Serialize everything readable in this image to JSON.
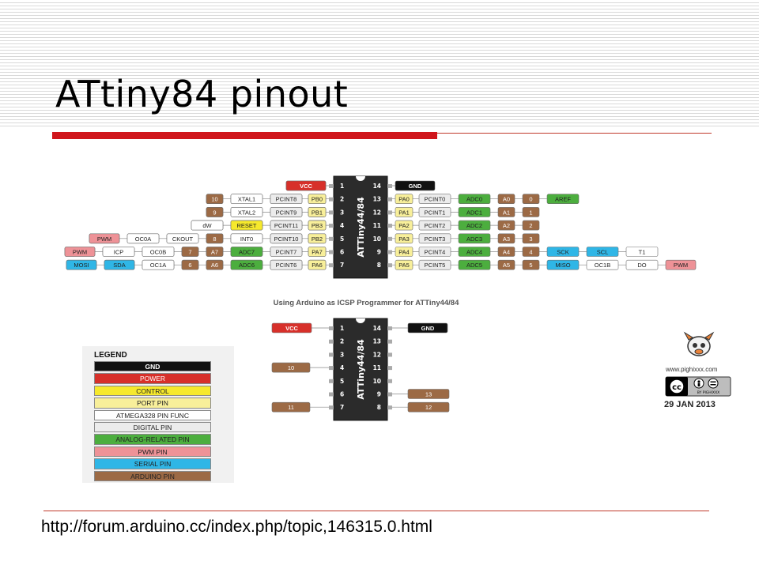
{
  "slide": {
    "title": "ATtiny84 pinout",
    "url": "http://forum.arduino.cc/index.php/topic,146315.0.html"
  },
  "colors": {
    "power": "#d7302a",
    "gnd": "#111111",
    "control": "#f6e92c",
    "port": "#f8ef9a",
    "func": "#ffffff",
    "digital": "#ececec",
    "analog": "#4cae3e",
    "pwm": "#ee9297",
    "serial": "#2fb6e6",
    "arduino": "#9c6a45"
  },
  "chip": {
    "label": "ATTiny44/84",
    "left_pins": [
      "1",
      "2",
      "3",
      "4",
      "5",
      "6",
      "7"
    ],
    "right_pins": [
      "14",
      "13",
      "12",
      "11",
      "10",
      "9",
      "8"
    ]
  },
  "main_diagram": {
    "left_rows": [
      [
        {
          "t": "VCC",
          "c": "power"
        }
      ],
      [
        {
          "t": "10",
          "c": "arduino"
        },
        {
          "t": "XTAL1",
          "c": "func"
        },
        {
          "t": "PCINT8",
          "c": "digital"
        },
        {
          "t": "PB0",
          "c": "port"
        }
      ],
      [
        {
          "t": "9",
          "c": "arduino"
        },
        {
          "t": "XTAL2",
          "c": "func"
        },
        {
          "t": "PCINT9",
          "c": "digital"
        },
        {
          "t": "PB1",
          "c": "port"
        }
      ],
      [
        {
          "t": "dW",
          "c": "func"
        },
        {
          "t": "RESET",
          "c": "control"
        },
        {
          "t": "PCINT11",
          "c": "digital"
        },
        {
          "t": "PB3",
          "c": "port"
        }
      ],
      [
        {
          "t": "PWM",
          "c": "pwm"
        },
        {
          "t": "OC0A",
          "c": "func"
        },
        {
          "t": "CKOUT",
          "c": "func"
        },
        {
          "t": "8",
          "c": "arduino"
        },
        {
          "t": "INT0",
          "c": "func"
        },
        {
          "t": "PCINT10",
          "c": "digital"
        },
        {
          "t": "PB2",
          "c": "port"
        }
      ],
      [
        {
          "t": "PWM",
          "c": "pwm"
        },
        {
          "t": "ICP",
          "c": "func"
        },
        {
          "t": "OC0B",
          "c": "func"
        },
        {
          "t": "7",
          "c": "arduino"
        },
        {
          "t": "A7",
          "c": "arduino"
        },
        {
          "t": "ADC7",
          "c": "analog"
        },
        {
          "t": "PCINT7",
          "c": "digital"
        },
        {
          "t": "PA7",
          "c": "port"
        }
      ],
      [
        {
          "t": "MOSI",
          "c": "serial"
        },
        {
          "t": "SDA",
          "c": "serial"
        },
        {
          "t": "OC1A",
          "c": "func"
        },
        {
          "t": "6",
          "c": "arduino"
        },
        {
          "t": "A6",
          "c": "arduino"
        },
        {
          "t": "ADC6",
          "c": "analog"
        },
        {
          "t": "PCINT6",
          "c": "digital"
        },
        {
          "t": "PA6",
          "c": "port"
        }
      ]
    ],
    "right_rows": [
      [
        {
          "t": "GND",
          "c": "gnd"
        }
      ],
      [
        {
          "t": "PA0",
          "c": "port"
        },
        {
          "t": "PCINT0",
          "c": "digital"
        },
        {
          "t": "ADC0",
          "c": "analog"
        },
        {
          "t": "A0",
          "c": "arduino"
        },
        {
          "t": "0",
          "c": "arduino"
        },
        {
          "t": "AREF",
          "c": "analog"
        }
      ],
      [
        {
          "t": "PA1",
          "c": "port"
        },
        {
          "t": "PCINT1",
          "c": "digital"
        },
        {
          "t": "ADC1",
          "c": "analog"
        },
        {
          "t": "A1",
          "c": "arduino"
        },
        {
          "t": "1",
          "c": "arduino"
        }
      ],
      [
        {
          "t": "PA2",
          "c": "port"
        },
        {
          "t": "PCINT2",
          "c": "digital"
        },
        {
          "t": "ADC2",
          "c": "analog"
        },
        {
          "t": "A2",
          "c": "arduino"
        },
        {
          "t": "2",
          "c": "arduino"
        }
      ],
      [
        {
          "t": "PA3",
          "c": "port"
        },
        {
          "t": "PCINT3",
          "c": "digital"
        },
        {
          "t": "ADC3",
          "c": "analog"
        },
        {
          "t": "A3",
          "c": "arduino"
        },
        {
          "t": "3",
          "c": "arduino"
        }
      ],
      [
        {
          "t": "PA4",
          "c": "port"
        },
        {
          "t": "PCINT4",
          "c": "digital"
        },
        {
          "t": "ADC4",
          "c": "analog"
        },
        {
          "t": "A4",
          "c": "arduino"
        },
        {
          "t": "4",
          "c": "arduino"
        },
        {
          "t": "SCK",
          "c": "serial"
        },
        {
          "t": "SCL",
          "c": "serial"
        },
        {
          "t": "T1",
          "c": "func"
        }
      ],
      [
        {
          "t": "PA5",
          "c": "port"
        },
        {
          "t": "PCINT5",
          "c": "digital"
        },
        {
          "t": "ADC5",
          "c": "analog"
        },
        {
          "t": "A5",
          "c": "arduino"
        },
        {
          "t": "5",
          "c": "arduino"
        },
        {
          "t": "MISO",
          "c": "serial"
        },
        {
          "t": "OC1B",
          "c": "func"
        },
        {
          "t": "DO",
          "c": "func"
        },
        {
          "t": "PWM",
          "c": "pwm"
        }
      ]
    ]
  },
  "icsp": {
    "caption": "Using Arduino as ICSP Programmer for ATTiny44/84",
    "left": [
      {
        "pin": "1",
        "t": "VCC",
        "c": "power"
      },
      {
        "pin": "4",
        "t": "10",
        "c": "arduino"
      },
      {
        "pin": "7",
        "t": "11",
        "c": "arduino"
      }
    ],
    "right": [
      {
        "pin": "14",
        "t": "GND",
        "c": "gnd"
      },
      {
        "pin": "9",
        "t": "13",
        "c": "arduino"
      },
      {
        "pin": "8",
        "t": "12",
        "c": "arduino"
      }
    ]
  },
  "legend": {
    "title": "LEGEND",
    "items": [
      {
        "t": "GND",
        "c": "gnd"
      },
      {
        "t": "POWER",
        "c": "power"
      },
      {
        "t": "CONTROL",
        "c": "control"
      },
      {
        "t": "PORT PIN",
        "c": "port"
      },
      {
        "t": "ATMEGA328 PIN FUNC",
        "c": "func"
      },
      {
        "t": "DIGITAL PIN",
        "c": "digital"
      },
      {
        "t": "ANALOG-RELATED PIN",
        "c": "analog"
      },
      {
        "t": "PWM PIN",
        "c": "pwm"
      },
      {
        "t": "SERIAL PIN",
        "c": "serial"
      },
      {
        "t": "ARDUINO PIN",
        "c": "arduino"
      }
    ]
  },
  "attribution": {
    "site": "www.pighixxx.com",
    "by": "BY PIGHIXXX",
    "cc": "cc",
    "date": "29 JAN 2013"
  }
}
